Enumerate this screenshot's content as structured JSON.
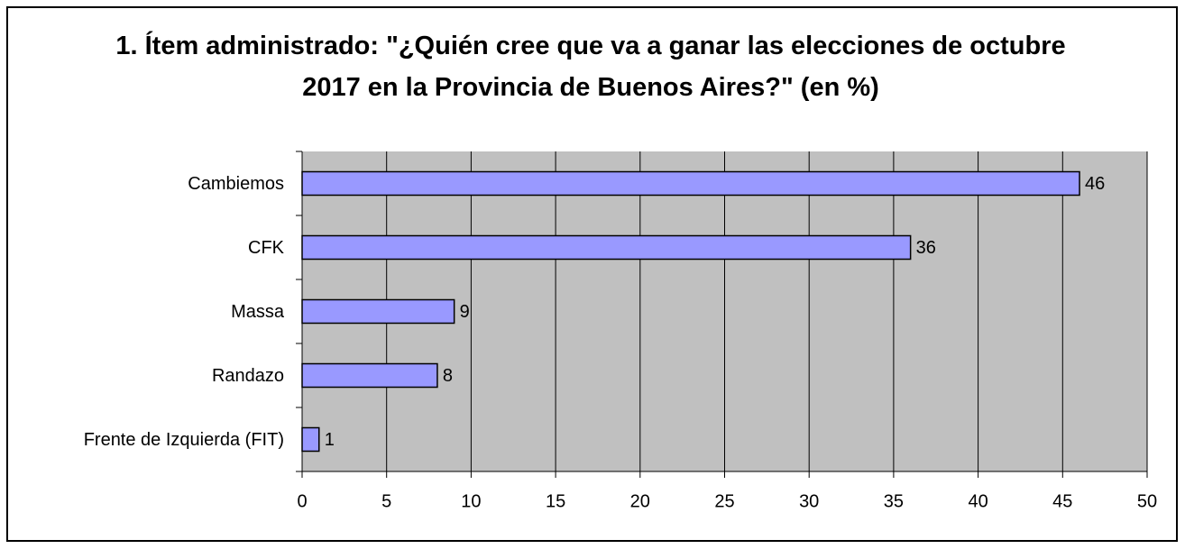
{
  "chart_data": {
    "type": "bar",
    "orientation": "horizontal",
    "title": "1. Ítem administrado: \"¿Quién cree que va a ganar las elecciones de octubre 2017 en la Provincia de Buenos Aires?\" (en %)",
    "categories": [
      "Cambiemos",
      "CFK",
      "Massa",
      "Randazo",
      "Frente de Izquierda (FIT)"
    ],
    "values": [
      46,
      36,
      9,
      8,
      1
    ],
    "color": "#9999ff",
    "xlim": [
      0,
      50
    ],
    "xticks": [
      0,
      5,
      10,
      15,
      20,
      25,
      30,
      35,
      40,
      45,
      50
    ],
    "grid": true
  }
}
